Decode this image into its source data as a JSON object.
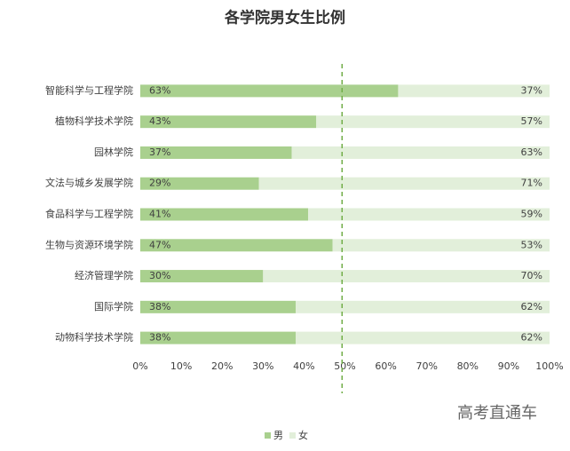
{
  "chart_data": {
    "type": "stacked_barh",
    "title": "各学院男女生比例",
    "categories": [
      "智能科学与工程学院",
      "植物科学技术学院",
      "园林学院",
      "文法与城乡发展学院",
      "食品科学与工程学院",
      "生物与资源环境学院",
      "经济管理学院",
      "国际学院",
      "动物科学技术学院"
    ],
    "series": [
      {
        "name": "男",
        "color": "#a9d08e",
        "values": [
          63,
          43,
          37,
          29,
          41,
          47,
          30,
          38,
          38
        ],
        "value_labels": [
          "63%",
          "43%",
          "37%",
          "29%",
          "41%",
          "47%",
          "30%",
          "38%",
          "38%"
        ]
      },
      {
        "name": "女",
        "color": "#e2efda",
        "values": [
          37,
          57,
          63,
          71,
          59,
          53,
          70,
          62,
          62
        ],
        "value_labels": [
          "37%",
          "57%",
          "63%",
          "71%",
          "59%",
          "53%",
          "70%",
          "62%",
          "62%"
        ]
      }
    ],
    "xlim": [
      0,
      100
    ],
    "xticks": [
      {
        "value": 0,
        "label": "0%"
      },
      {
        "value": 10,
        "label": "10%"
      },
      {
        "value": 20,
        "label": "20%"
      },
      {
        "value": 30,
        "label": "30%"
      },
      {
        "value": 40,
        "label": "40%"
      },
      {
        "value": 50,
        "label": "50%"
      },
      {
        "value": 60,
        "label": "60%"
      },
      {
        "value": 70,
        "label": "70%"
      },
      {
        "value": 80,
        "label": "80%"
      },
      {
        "value": 90,
        "label": "90%"
      },
      {
        "value": 100,
        "label": "100%"
      }
    ],
    "reference_line": 49.3,
    "reference_color": "#70ad47",
    "legend": "bottom",
    "watermark": "高考直通车"
  }
}
